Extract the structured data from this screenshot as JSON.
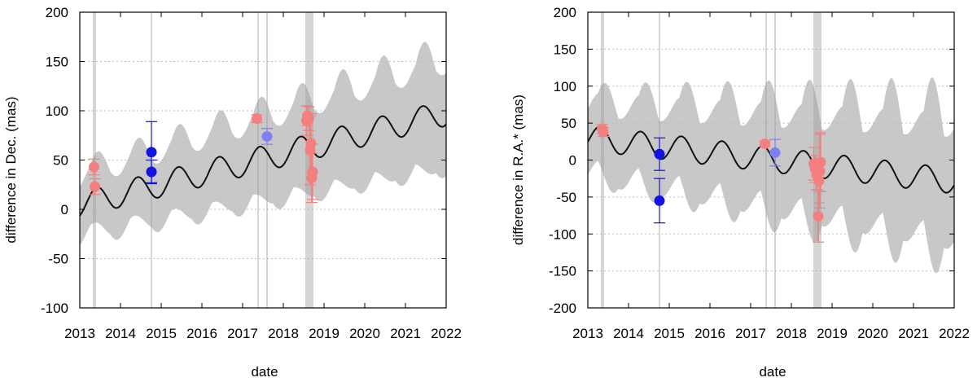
{
  "chart_data": [
    {
      "type": "scatter",
      "title": "",
      "xlabel": "date",
      "ylabel": "difference in Dec. (mas)",
      "xlim": [
        2013,
        2022
      ],
      "ylim": [
        -100,
        200
      ],
      "xticks": [
        "2013",
        "2014",
        "2015",
        "2016",
        "2017",
        "2018",
        "2019",
        "2020",
        "2021",
        "2022"
      ],
      "yticks": [
        "-100",
        "-50",
        "0",
        "50",
        "100",
        "150",
        "200"
      ],
      "grid": true,
      "model": {
        "offset": 5,
        "slope": 10.3,
        "amplitude": 13,
        "period": 1.0,
        "phase": 0.17
      },
      "band": {
        "base_half_width": 30,
        "growth_per_year": 2.5,
        "wobble": 10
      },
      "epoch_lines": [
        2013.34,
        2013.38,
        2014.76,
        2017.38,
        2017.6,
        2018.56,
        2018.6,
        2018.64,
        2018.68,
        2018.72
      ],
      "series": [
        {
          "name": "red points",
          "color": "#f47f7f",
          "points": [
            {
              "x": 2013.35,
              "y": 43,
              "err": 8
            },
            {
              "x": 2013.37,
              "y": 23,
              "err": 8
            },
            {
              "x": 2017.35,
              "y": 92,
              "err": 4
            },
            {
              "x": 2018.57,
              "y": 90,
              "err": 15
            },
            {
              "x": 2018.59,
              "y": 95,
              "err": 10
            },
            {
              "x": 2018.63,
              "y": 92,
              "err": 12
            },
            {
              "x": 2018.66,
              "y": 60,
              "err": 35
            },
            {
              "x": 2018.68,
              "y": 67,
              "err": 30
            },
            {
              "x": 2018.7,
              "y": 32,
              "err": 25
            },
            {
              "x": 2018.72,
              "y": 38,
              "err": 28
            }
          ]
        },
        {
          "name": "dark blue points",
          "color": "#1414e0",
          "points": [
            {
              "x": 2014.76,
              "y": 58,
              "err": 31
            },
            {
              "x": 2014.76,
              "y": 38,
              "err": 12
            }
          ]
        },
        {
          "name": "light blue points",
          "color": "#7f7ff4",
          "points": [
            {
              "x": 2017.6,
              "y": 74,
              "err": 8
            }
          ]
        }
      ]
    },
    {
      "type": "scatter",
      "title": "",
      "xlabel": "date",
      "ylabel": "difference in R.A.* (mas)",
      "xlim": [
        2013,
        2022
      ],
      "ylim": [
        -200,
        200
      ],
      "xticks": [
        "2013",
        "2014",
        "2015",
        "2016",
        "2017",
        "2018",
        "2019",
        "2020",
        "2021",
        "2022"
      ],
      "yticks": [
        "-200",
        "-150",
        "-100",
        "-50",
        "0",
        "50",
        "100",
        "150",
        "200"
      ],
      "grid": true,
      "model": {
        "offset": 30,
        "slope": -6.5,
        "amplitude": 17,
        "period": 1.0,
        "phase": 0.05
      },
      "band": {
        "base_half_width": 45,
        "growth_per_year": 3.5,
        "wobble": 38
      },
      "epoch_lines": [
        2013.34,
        2013.38,
        2014.76,
        2017.38,
        2017.6,
        2018.56,
        2018.6,
        2018.64,
        2018.68,
        2018.72
      ],
      "series": [
        {
          "name": "red points",
          "color": "#f47f7f",
          "points": [
            {
              "x": 2013.35,
              "y": 42,
              "err": 6
            },
            {
              "x": 2013.38,
              "y": 38,
              "err": 6
            },
            {
              "x": 2017.35,
              "y": 22,
              "err": 4
            },
            {
              "x": 2018.55,
              "y": -5,
              "err": 22
            },
            {
              "x": 2018.58,
              "y": -12,
              "err": 18
            },
            {
              "x": 2018.62,
              "y": -20,
              "err": 20
            },
            {
              "x": 2018.66,
              "y": -76,
              "err": 35
            },
            {
              "x": 2018.68,
              "y": -28,
              "err": 30
            },
            {
              "x": 2018.7,
              "y": -15,
              "err": 50
            },
            {
              "x": 2018.72,
              "y": -3,
              "err": 40
            }
          ]
        },
        {
          "name": "dark blue points",
          "color": "#1414e0",
          "points": [
            {
              "x": 2014.76,
              "y": 8,
              "err": 22
            },
            {
              "x": 2014.76,
              "y": -55,
              "err": 30
            }
          ]
        },
        {
          "name": "light blue points",
          "color": "#7f7ff4",
          "points": [
            {
              "x": 2017.6,
              "y": 10,
              "err": 18
            }
          ]
        }
      ]
    }
  ]
}
